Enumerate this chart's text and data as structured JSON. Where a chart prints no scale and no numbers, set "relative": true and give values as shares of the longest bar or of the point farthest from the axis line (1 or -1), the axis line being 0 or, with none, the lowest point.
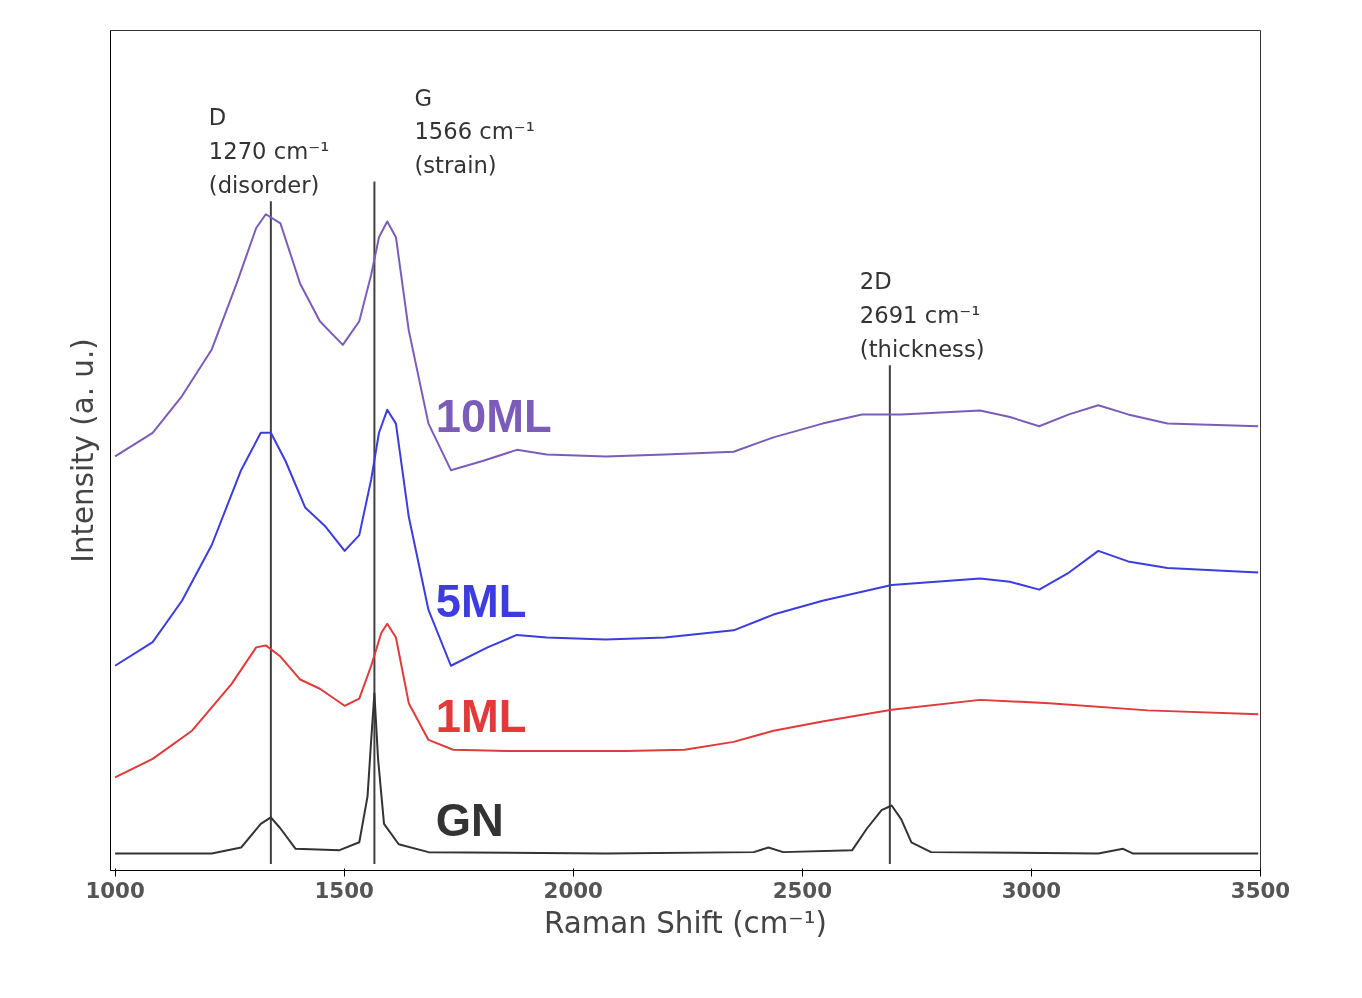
{
  "chart_data": {
    "type": "line",
    "relative": true,
    "xlabel": "Raman Shift (cm⁻¹)",
    "ylabel": "Intensity (a. u.)",
    "xlim": [
      990,
      3500
    ],
    "xticks": [
      1000,
      1500,
      2000,
      2500,
      3000,
      3500
    ],
    "grid": false,
    "legend": false,
    "marker": "none",
    "line_style": "solid",
    "ref_lines": [
      {
        "axis": "x",
        "value": 1340,
        "label": "D\n1270 cm⁻¹\n(disorder)",
        "color": "#404040"
      },
      {
        "axis": "x",
        "value": 1566,
        "label": "G\n1566 cm⁻¹\n(strain)",
        "color": "#404040"
      },
      {
        "axis": "x",
        "value": 2691,
        "label": "2D\n2691 cm⁻¹\n(thickness)",
        "color": "#404040"
      }
    ],
    "series": [
      {
        "name": "10ML",
        "color": "#7b5cb8",
        "x": [
          1000,
          1082,
          1146,
          1211,
          1265,
          1308,
          1329,
          1361,
          1404,
          1447,
          1497,
          1533,
          1559,
          1576,
          1594,
          1613,
          1641,
          1684,
          1733,
          1802,
          1877,
          1942,
          2071,
          2200,
          2350,
          2437,
          2544,
          2630,
          2716,
          2888,
          2953,
          3017,
          3082,
          3146,
          3211,
          3297,
          3495
        ],
        "values": [
          0.631,
          0.667,
          0.723,
          0.794,
          0.894,
          0.979,
          1.0,
          0.986,
          0.894,
          0.837,
          0.801,
          0.837,
          0.908,
          0.965,
          0.989,
          0.965,
          0.823,
          0.681,
          0.61,
          0.624,
          0.641,
          0.634,
          0.631,
          0.634,
          0.638,
          0.66,
          0.681,
          0.695,
          0.695,
          0.701,
          0.691,
          0.677,
          0.695,
          0.709,
          0.695,
          0.681,
          0.677
        ]
      },
      {
        "name": "5ML",
        "color": "#3c3ce0",
        "x": [
          1000,
          1082,
          1146,
          1211,
          1275,
          1318,
          1340,
          1372,
          1415,
          1458,
          1501,
          1533,
          1559,
          1576,
          1594,
          1613,
          1641,
          1684,
          1733,
          1813,
          1877,
          1942,
          2071,
          2200,
          2350,
          2437,
          2544,
          2695,
          2888,
          2953,
          3017,
          3082,
          3146,
          3211,
          3297,
          3495
        ],
        "values": [
          0.312,
          0.348,
          0.411,
          0.496,
          0.61,
          0.667,
          0.667,
          0.624,
          0.553,
          0.525,
          0.487,
          0.511,
          0.596,
          0.667,
          0.702,
          0.681,
          0.539,
          0.397,
          0.312,
          0.34,
          0.359,
          0.355,
          0.352,
          0.355,
          0.366,
          0.39,
          0.411,
          0.435,
          0.445,
          0.44,
          0.428,
          0.454,
          0.487,
          0.471,
          0.461,
          0.454
        ]
      },
      {
        "name": "1ML",
        "color": "#e03a3a",
        "x": [
          1000,
          1082,
          1168,
          1254,
          1308,
          1329,
          1361,
          1404,
          1447,
          1501,
          1533,
          1559,
          1581,
          1594,
          1613,
          1641,
          1684,
          1738,
          1856,
          1985,
          2114,
          2243,
          2350,
          2437,
          2544,
          2695,
          2888,
          3039,
          3254,
          3495
        ],
        "values": [
          0.142,
          0.17,
          0.213,
          0.284,
          0.34,
          0.343,
          0.326,
          0.291,
          0.277,
          0.251,
          0.262,
          0.312,
          0.362,
          0.376,
          0.355,
          0.255,
          0.199,
          0.184,
          0.182,
          0.182,
          0.182,
          0.184,
          0.196,
          0.213,
          0.227,
          0.245,
          0.26,
          0.255,
          0.244,
          0.238
        ]
      },
      {
        "name": "GN",
        "color": "#333333",
        "x": [
          1000,
          1211,
          1275,
          1318,
          1340,
          1361,
          1394,
          1490,
          1533,
          1551,
          1559,
          1566,
          1574,
          1587,
          1619,
          1684,
          2071,
          2394,
          2426,
          2458,
          2609,
          2641,
          2673,
          2695,
          2716,
          2738,
          2781,
          3146,
          3200,
          3221,
          3495
        ],
        "values": [
          0.026,
          0.026,
          0.035,
          0.071,
          0.081,
          0.064,
          0.033,
          0.031,
          0.043,
          0.113,
          0.199,
          0.27,
          0.17,
          0.071,
          0.04,
          0.028,
          0.026,
          0.028,
          0.035,
          0.028,
          0.031,
          0.064,
          0.092,
          0.099,
          0.078,
          0.043,
          0.028,
          0.026,
          0.033,
          0.026,
          0.026
        ]
      }
    ]
  }
}
